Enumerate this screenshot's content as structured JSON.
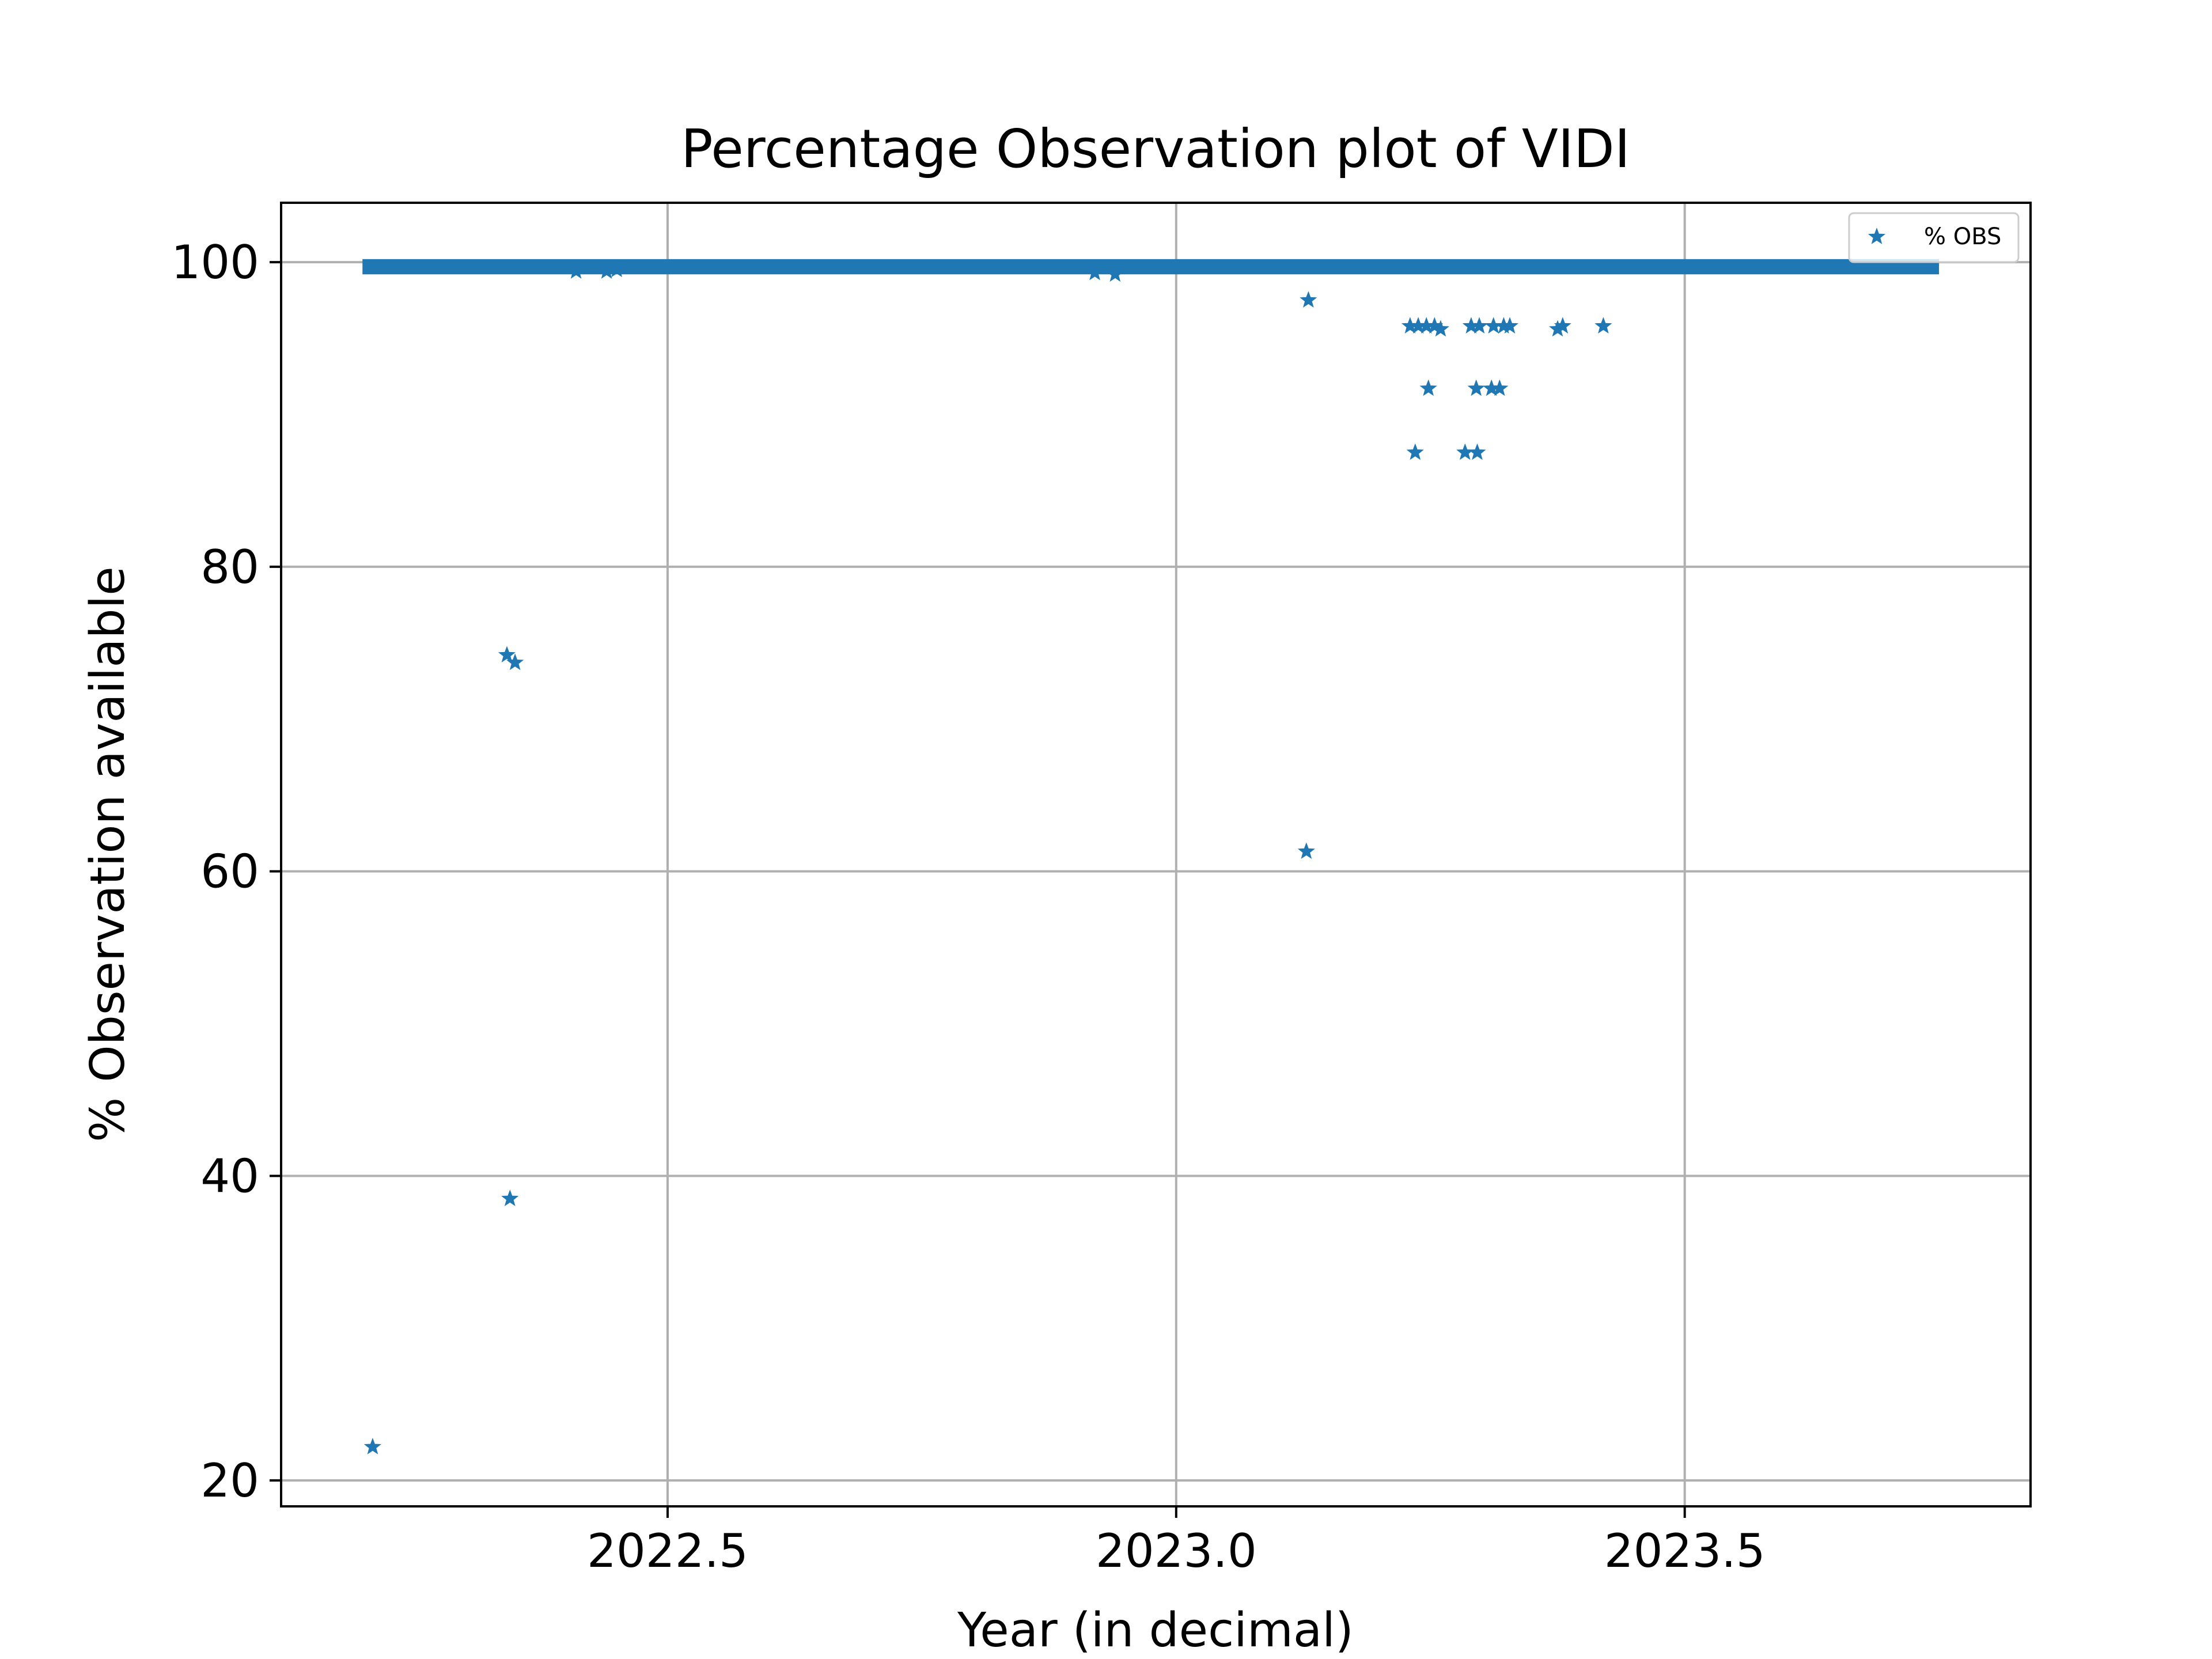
{
  "chart_data": {
    "type": "scatter",
    "title": "Percentage Observation plot of VIDI",
    "xlabel": "Year (in decimal)",
    "ylabel": "% Observation available",
    "xlim": [
      2022.12,
      2023.84
    ],
    "ylim": [
      18.3,
      103.9
    ],
    "xticks": [
      2022.5,
      2023.0,
      2023.5
    ],
    "xtick_labels": [
      "2022.5",
      "2023.0",
      "2023.5"
    ],
    "yticks": [
      20,
      40,
      60,
      80,
      100
    ],
    "ytick_labels": [
      "20",
      "40",
      "60",
      "80",
      "100"
    ],
    "grid": true,
    "legend": "top-right",
    "colors": {
      "series": "#1f77b4",
      "grid": "#b0b0b0",
      "axes": "#000000"
    },
    "series": [
      {
        "name": "% OBS",
        "marker": "star",
        "band_near_100": {
          "x_start": 2022.2,
          "x_end": 2023.75,
          "y_min": 99.2,
          "y_max": 100.2
        },
        "points": [
          {
            "x": 2022.21,
            "y": 22.2
          },
          {
            "x": 2022.345,
            "y": 38.5
          },
          {
            "x": 2022.342,
            "y": 74.2
          },
          {
            "x": 2022.35,
            "y": 73.7
          },
          {
            "x": 2023.128,
            "y": 61.3
          },
          {
            "x": 2023.13,
            "y": 97.5
          },
          {
            "x": 2023.23,
            "y": 95.8
          },
          {
            "x": 2023.238,
            "y": 95.8
          },
          {
            "x": 2023.246,
            "y": 95.8
          },
          {
            "x": 2023.254,
            "y": 95.8
          },
          {
            "x": 2023.26,
            "y": 95.6
          },
          {
            "x": 2023.29,
            "y": 95.8
          },
          {
            "x": 2023.298,
            "y": 95.8
          },
          {
            "x": 2023.312,
            "y": 95.8
          },
          {
            "x": 2023.322,
            "y": 95.8
          },
          {
            "x": 2023.328,
            "y": 95.8
          },
          {
            "x": 2023.375,
            "y": 95.6
          },
          {
            "x": 2023.38,
            "y": 95.8
          },
          {
            "x": 2023.42,
            "y": 95.8
          },
          {
            "x": 2023.248,
            "y": 91.7
          },
          {
            "x": 2023.295,
            "y": 91.7
          },
          {
            "x": 2023.31,
            "y": 91.7
          },
          {
            "x": 2023.318,
            "y": 91.7
          },
          {
            "x": 2023.235,
            "y": 87.5
          },
          {
            "x": 2023.284,
            "y": 87.5
          },
          {
            "x": 2023.296,
            "y": 87.5
          },
          {
            "x": 2022.41,
            "y": 99.4
          },
          {
            "x": 2022.44,
            "y": 99.4
          },
          {
            "x": 2022.45,
            "y": 99.5
          },
          {
            "x": 2022.92,
            "y": 99.3
          },
          {
            "x": 2022.94,
            "y": 99.2
          }
        ]
      }
    ]
  }
}
